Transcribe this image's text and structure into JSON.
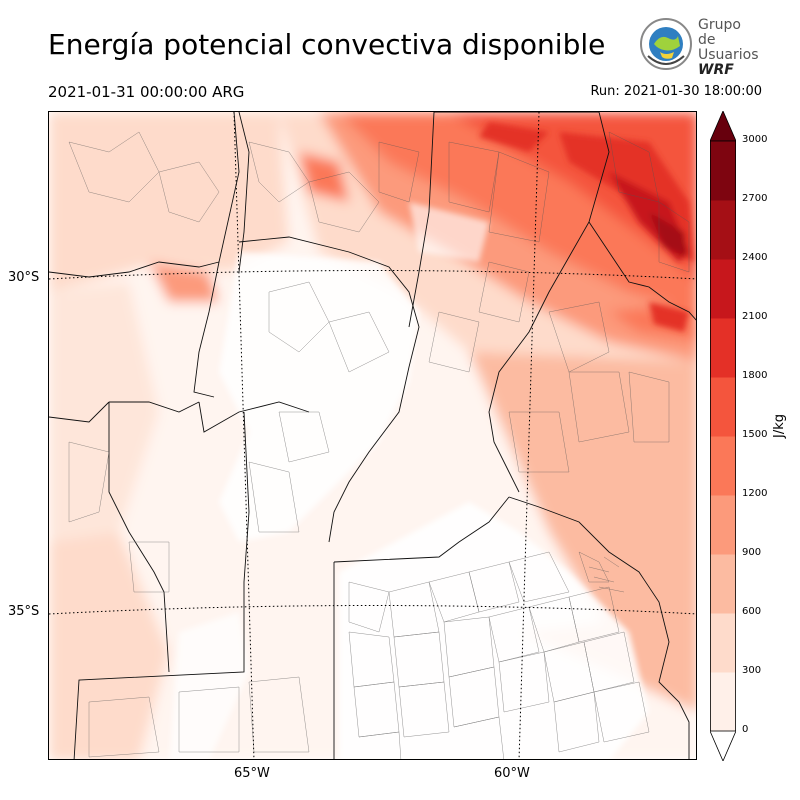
{
  "title": "Energía potencial convectiva disponible",
  "subtitle_left": "2021-01-31 00:00:00 ARG",
  "subtitle_right": "Run: 2021-01-30 18:00:00",
  "logo": {
    "line1": "Grupo de",
    "line2": "Usuarios",
    "line3": "WRF"
  },
  "map": {
    "lat_labels": [
      "30°S",
      "35°S"
    ],
    "lon_labels": [
      "65°W",
      "60°W"
    ]
  },
  "colorbar": {
    "unit": "J/kg",
    "ticks": [
      "0",
      "300",
      "600",
      "900",
      "1200",
      "1500",
      "1800",
      "2100",
      "2400",
      "2700",
      "3000"
    ],
    "colors": [
      "#fff0e9",
      "#fedbcb",
      "#fcbba1",
      "#fc9a7b",
      "#fb7858",
      "#f4553d",
      "#e43027",
      "#c7171c",
      "#a50f15",
      "#7e0510"
    ]
  }
}
